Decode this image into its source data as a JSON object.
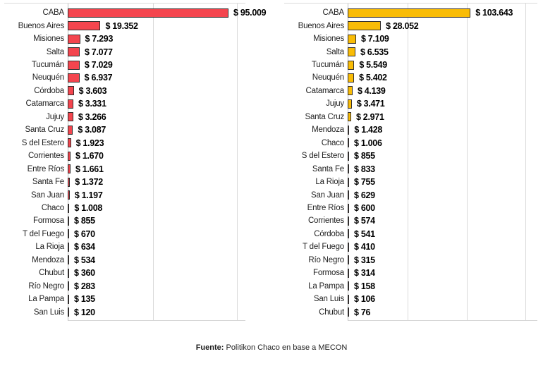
{
  "page": {
    "background": "#ffffff"
  },
  "footer": {
    "source_label": "Fuente:",
    "source_text": " Politikon Chaco en base a MECON"
  },
  "chart_data": [
    {
      "type": "bar",
      "orientation": "horizontal",
      "title": "",
      "bar_fill": "#F4454E",
      "bar_border": "#322F2F",
      "axis_max": 105000,
      "gridlines": [
        50000,
        100000
      ],
      "grid_on": true,
      "categories": [
        "CABA",
        "Buenos Aires",
        "Misiones",
        "Salta",
        "Tucumán",
        "Neuquén",
        "Córdoba",
        "Catamarca",
        "Jujuy",
        "Santa Cruz",
        "S del Estero",
        "Corrientes",
        "Entre Ríos",
        "Santa Fe",
        "San Juan",
        "Chaco",
        "Formosa",
        "T del Fuego",
        "La Rioja",
        "Mendoza",
        "Chubut",
        "Río Negro",
        "La Pampa",
        "San Luis"
      ],
      "values": [
        95009,
        19352,
        7293,
        7077,
        7029,
        6937,
        3603,
        3331,
        3266,
        3087,
        1923,
        1670,
        1661,
        1372,
        1197,
        1008,
        855,
        670,
        634,
        534,
        360,
        283,
        135,
        120
      ],
      "value_labels": [
        "$ 95.009",
        "$ 19.352",
        "$ 7.293",
        "$ 7.077",
        "$ 7.029",
        "$ 6.937",
        "$ 3.603",
        "$ 3.331",
        "$ 3.266",
        "$ 3.087",
        "$ 1.923",
        "$ 1.670",
        "$ 1.661",
        "$ 1.372",
        "$ 1.197",
        "$ 1.008",
        "$ 855",
        "$ 670",
        "$ 634",
        "$ 534",
        "$ 360",
        "$ 283",
        "$ 135",
        "$ 120"
      ]
    },
    {
      "type": "bar",
      "orientation": "horizontal",
      "title": "",
      "bar_fill": "#F9BC06",
      "bar_border": "#322F2F",
      "axis_max": 160000,
      "gridlines": [
        50000,
        100000,
        150000
      ],
      "grid_on": true,
      "categories": [
        "CABA",
        "Buenos Aires",
        "Misiones",
        "Salta",
        "Tucumán",
        "Neuquén",
        "Catamarca",
        "Jujuy",
        "Santa Cruz",
        "Mendoza",
        "Chaco",
        "S del Estero",
        "Santa Fe",
        "La Rioja",
        "San Juan",
        "Entre Ríos",
        "Corrientes",
        "Córdoba",
        "T del Fuego",
        "Río Negro",
        "Formosa",
        "La Pampa",
        "San Luis",
        "Chubut"
      ],
      "values": [
        103643,
        28052,
        7109,
        6535,
        5549,
        5402,
        4139,
        3471,
        2971,
        1428,
        1006,
        855,
        833,
        755,
        629,
        600,
        574,
        541,
        410,
        315,
        314,
        158,
        106,
        76
      ],
      "value_labels": [
        "$ 103.643",
        "$ 28.052",
        "$ 7.109",
        "$ 6.535",
        "$ 5.549",
        "$ 5.402",
        "$ 4.139",
        "$ 3.471",
        "$ 2.971",
        "$ 1.428",
        "$ 1.006",
        "$ 855",
        "$ 833",
        "$ 755",
        "$ 629",
        "$ 600",
        "$ 574",
        "$ 541",
        "$ 410",
        "$ 315",
        "$ 314",
        "$ 158",
        "$ 106",
        "$ 76"
      ]
    }
  ]
}
